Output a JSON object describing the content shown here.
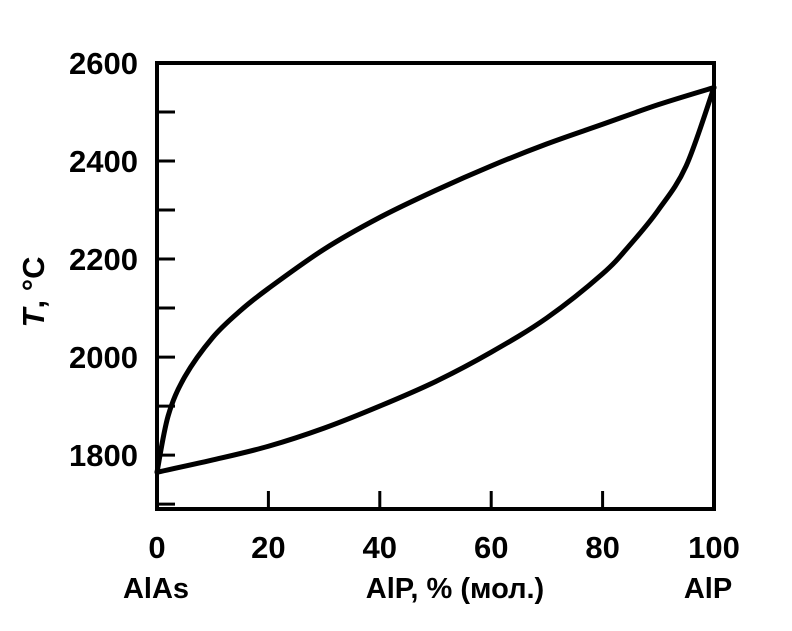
{
  "chart_data": {
    "type": "line",
    "title": "",
    "xlabel": "AlP, % (мол.)",
    "ylabel_prefix": "T",
    "ylabel_suffix": ", °C",
    "x_end_labels": {
      "left": "AlAs",
      "right": "AlP"
    },
    "xlim": [
      0,
      100
    ],
    "ylim": [
      1690,
      2600
    ],
    "x_ticks": [
      0,
      20,
      40,
      60,
      80,
      100
    ],
    "x_tick_labels": [
      "0",
      "20",
      "40",
      "60",
      "80",
      "100"
    ],
    "y_ticks": [
      1800,
      2000,
      2200,
      2400,
      2600
    ],
    "y_tick_labels": [
      "1800",
      "2000",
      "2200",
      "2400",
      "2600"
    ],
    "y_minor_ticks": [
      1700,
      1900,
      2100,
      2300,
      2500
    ],
    "grid": false,
    "series": [
      {
        "x": [
          0,
          2,
          5,
          10,
          15,
          20,
          30,
          40,
          50,
          60,
          70,
          80,
          90,
          100
        ],
        "y": [
          1765,
          1880,
          1960,
          2040,
          2095,
          2140,
          2220,
          2285,
          2340,
          2390,
          2435,
          2475,
          2515,
          2550
        ]
      },
      {
        "x": [
          0,
          10,
          20,
          30,
          40,
          50,
          60,
          70,
          80,
          85,
          90,
          95,
          100
        ],
        "y": [
          1765,
          1790,
          1818,
          1855,
          1900,
          1950,
          2010,
          2080,
          2170,
          2230,
          2300,
          2390,
          2550
        ]
      }
    ]
  }
}
